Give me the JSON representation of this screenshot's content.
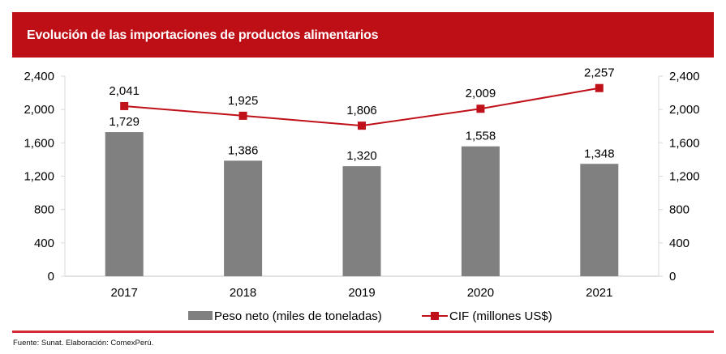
{
  "header": {
    "title": "Evolución de las importaciones de productos alimentarios"
  },
  "colors": {
    "header_bg": "#be0f17",
    "bar": "#808080",
    "line": "#c0101a",
    "axis": "#d9d9d9",
    "rule": "#d12a33"
  },
  "chart_data": {
    "type": "bar+line",
    "title": "Evolución de las importaciones de productos alimentarios",
    "categories": [
      "2017",
      "2018",
      "2019",
      "2020",
      "2021"
    ],
    "series": [
      {
        "name": "Peso neto (miles de toneladas)",
        "type": "bar",
        "axis": "left",
        "values": [
          1729,
          1386,
          1320,
          1558,
          1348
        ],
        "labels": [
          "1,729",
          "1,386",
          "1,320",
          "1,558",
          "1,348"
        ]
      },
      {
        "name": "CIF (millones US$)",
        "type": "line",
        "marker": "square",
        "axis": "right",
        "values": [
          2041,
          1925,
          1806,
          2009,
          2257
        ],
        "labels": [
          "2,041",
          "1,925",
          "1,806",
          "2,009",
          "2,257"
        ]
      }
    ],
    "y_left": {
      "ylim": [
        0,
        2400
      ],
      "ticks": [
        0,
        400,
        800,
        1200,
        1600,
        2000,
        2400
      ],
      "tick_labels": [
        "0",
        "400",
        "800",
        "1,200",
        "1,600",
        "2,000",
        "2,400"
      ]
    },
    "y_right": {
      "ylim": [
        0,
        2400
      ],
      "ticks": [
        0,
        400,
        800,
        1200,
        1600,
        2000,
        2400
      ],
      "tick_labels": [
        "0",
        "400",
        "800",
        "1,200",
        "1,600",
        "2,000",
        "2,400"
      ]
    },
    "xlabel": "",
    "ylabel": "",
    "grid": false,
    "legend": {
      "position": "bottom",
      "entries": [
        "Peso neto (miles de toneladas)",
        "CIF (millones US$)"
      ]
    }
  },
  "footer": {
    "source": "Fuente: Sunat. Elaboración: ComexPerú."
  }
}
